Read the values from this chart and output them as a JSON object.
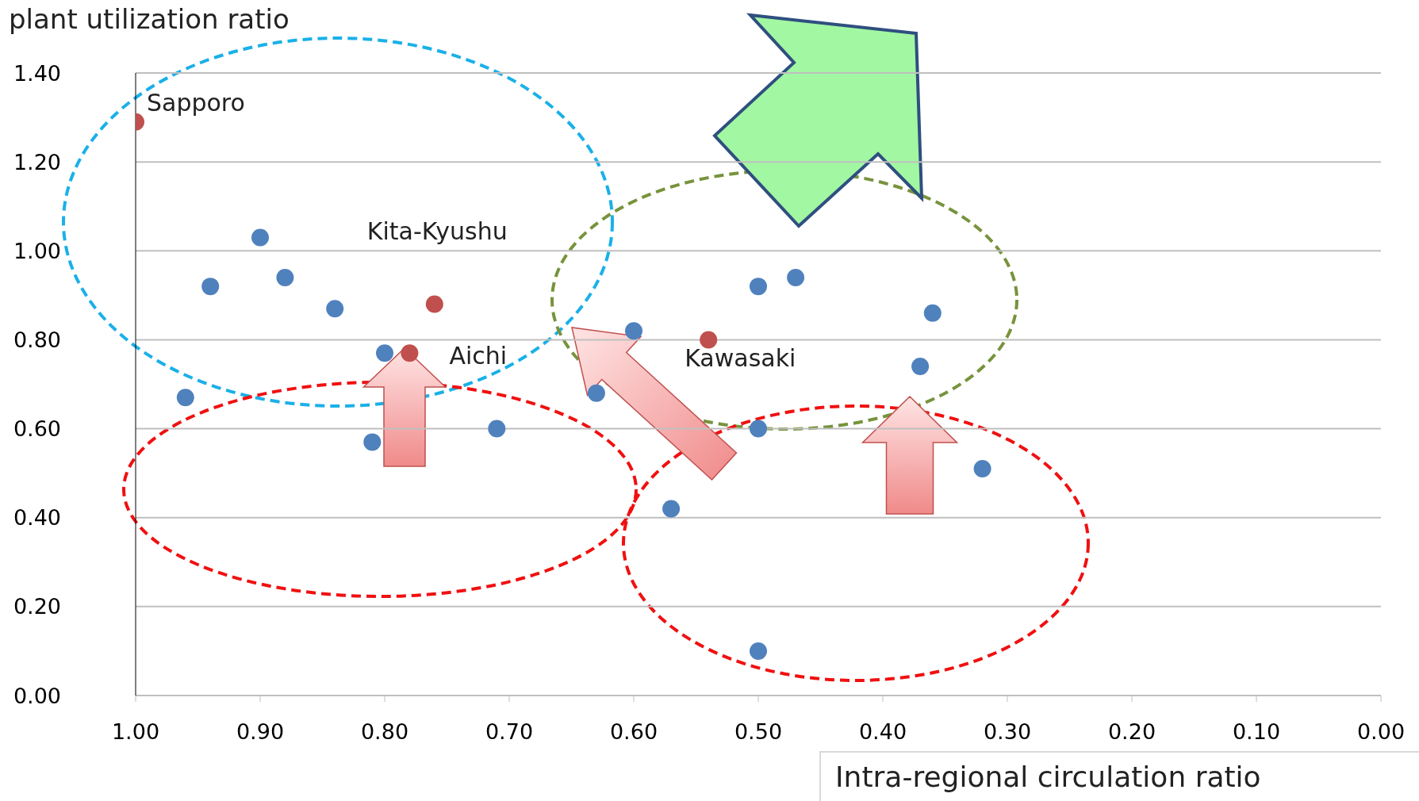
{
  "chart_data": {
    "type": "scatter",
    "ylabel": "plant utilization ratio",
    "xlabel": "Intra-regional circulation ratio",
    "series": [
      {
        "color": "#4f81bd",
        "x": [
          0.9,
          0.94,
          0.88,
          0.84,
          0.8,
          0.96,
          0.81,
          0.71,
          0.63,
          0.6,
          0.57,
          0.5,
          0.47,
          0.5,
          0.5,
          0.36,
          0.37,
          0.32
        ],
        "values": [
          1.03,
          0.92,
          0.94,
          0.87,
          0.77,
          0.67,
          0.57,
          0.6,
          0.68,
          0.82,
          0.42,
          0.92,
          0.94,
          0.6,
          0.1,
          0.86,
          0.74,
          0.51
        ]
      },
      {
        "color": "#c0504d",
        "x": [
          1.0,
          0.76,
          0.78,
          0.54
        ],
        "values": [
          1.29,
          0.88,
          0.77,
          0.8
        ]
      }
    ],
    "annotations": [
      {
        "text": "Sapporo",
        "x": 1.0,
        "y": 1.29
      },
      {
        "text": "Kita-Kyushu",
        "x": 0.76,
        "y": 0.88
      },
      {
        "text": "Aichi",
        "x": 0.78,
        "y": 0.77
      },
      {
        "text": "Kawasaki",
        "x": 0.54,
        "y": 0.8
      }
    ],
    "xlim": [
      1.0,
      0.0
    ],
    "xticks": [
      {
        "value": 1,
        "label": "1.00"
      },
      {
        "value": 0.9,
        "label": "0.90"
      },
      {
        "value": 0.8,
        "label": "0.80"
      },
      {
        "value": 0.7,
        "label": "0.70"
      },
      {
        "value": 0.6,
        "label": "0.60"
      },
      {
        "value": 0.5,
        "label": "0.50"
      },
      {
        "value": 0.4,
        "label": "0.40"
      },
      {
        "value": 0.3,
        "label": "0.30"
      },
      {
        "value": 0.2,
        "label": "0.20"
      },
      {
        "value": 0.1,
        "label": "0.10"
      },
      {
        "value": 0,
        "label": "0.00"
      }
    ],
    "ylim": [
      0,
      1.4
    ],
    "yticks": [
      {
        "value": 0,
        "label": "0.00"
      },
      {
        "value": 0.2,
        "label": "0.20"
      },
      {
        "value": 0.4,
        "label": "0.40"
      },
      {
        "value": 0.6,
        "label": "0.60"
      },
      {
        "value": 0.8,
        "label": "0.80"
      },
      {
        "value": 1,
        "label": "1.00"
      },
      {
        "value": 1.2,
        "label": "1.20"
      },
      {
        "value": 1.4,
        "label": "1.40"
      }
    ],
    "grid": "y",
    "marker": "circle",
    "legend": false
  }
}
